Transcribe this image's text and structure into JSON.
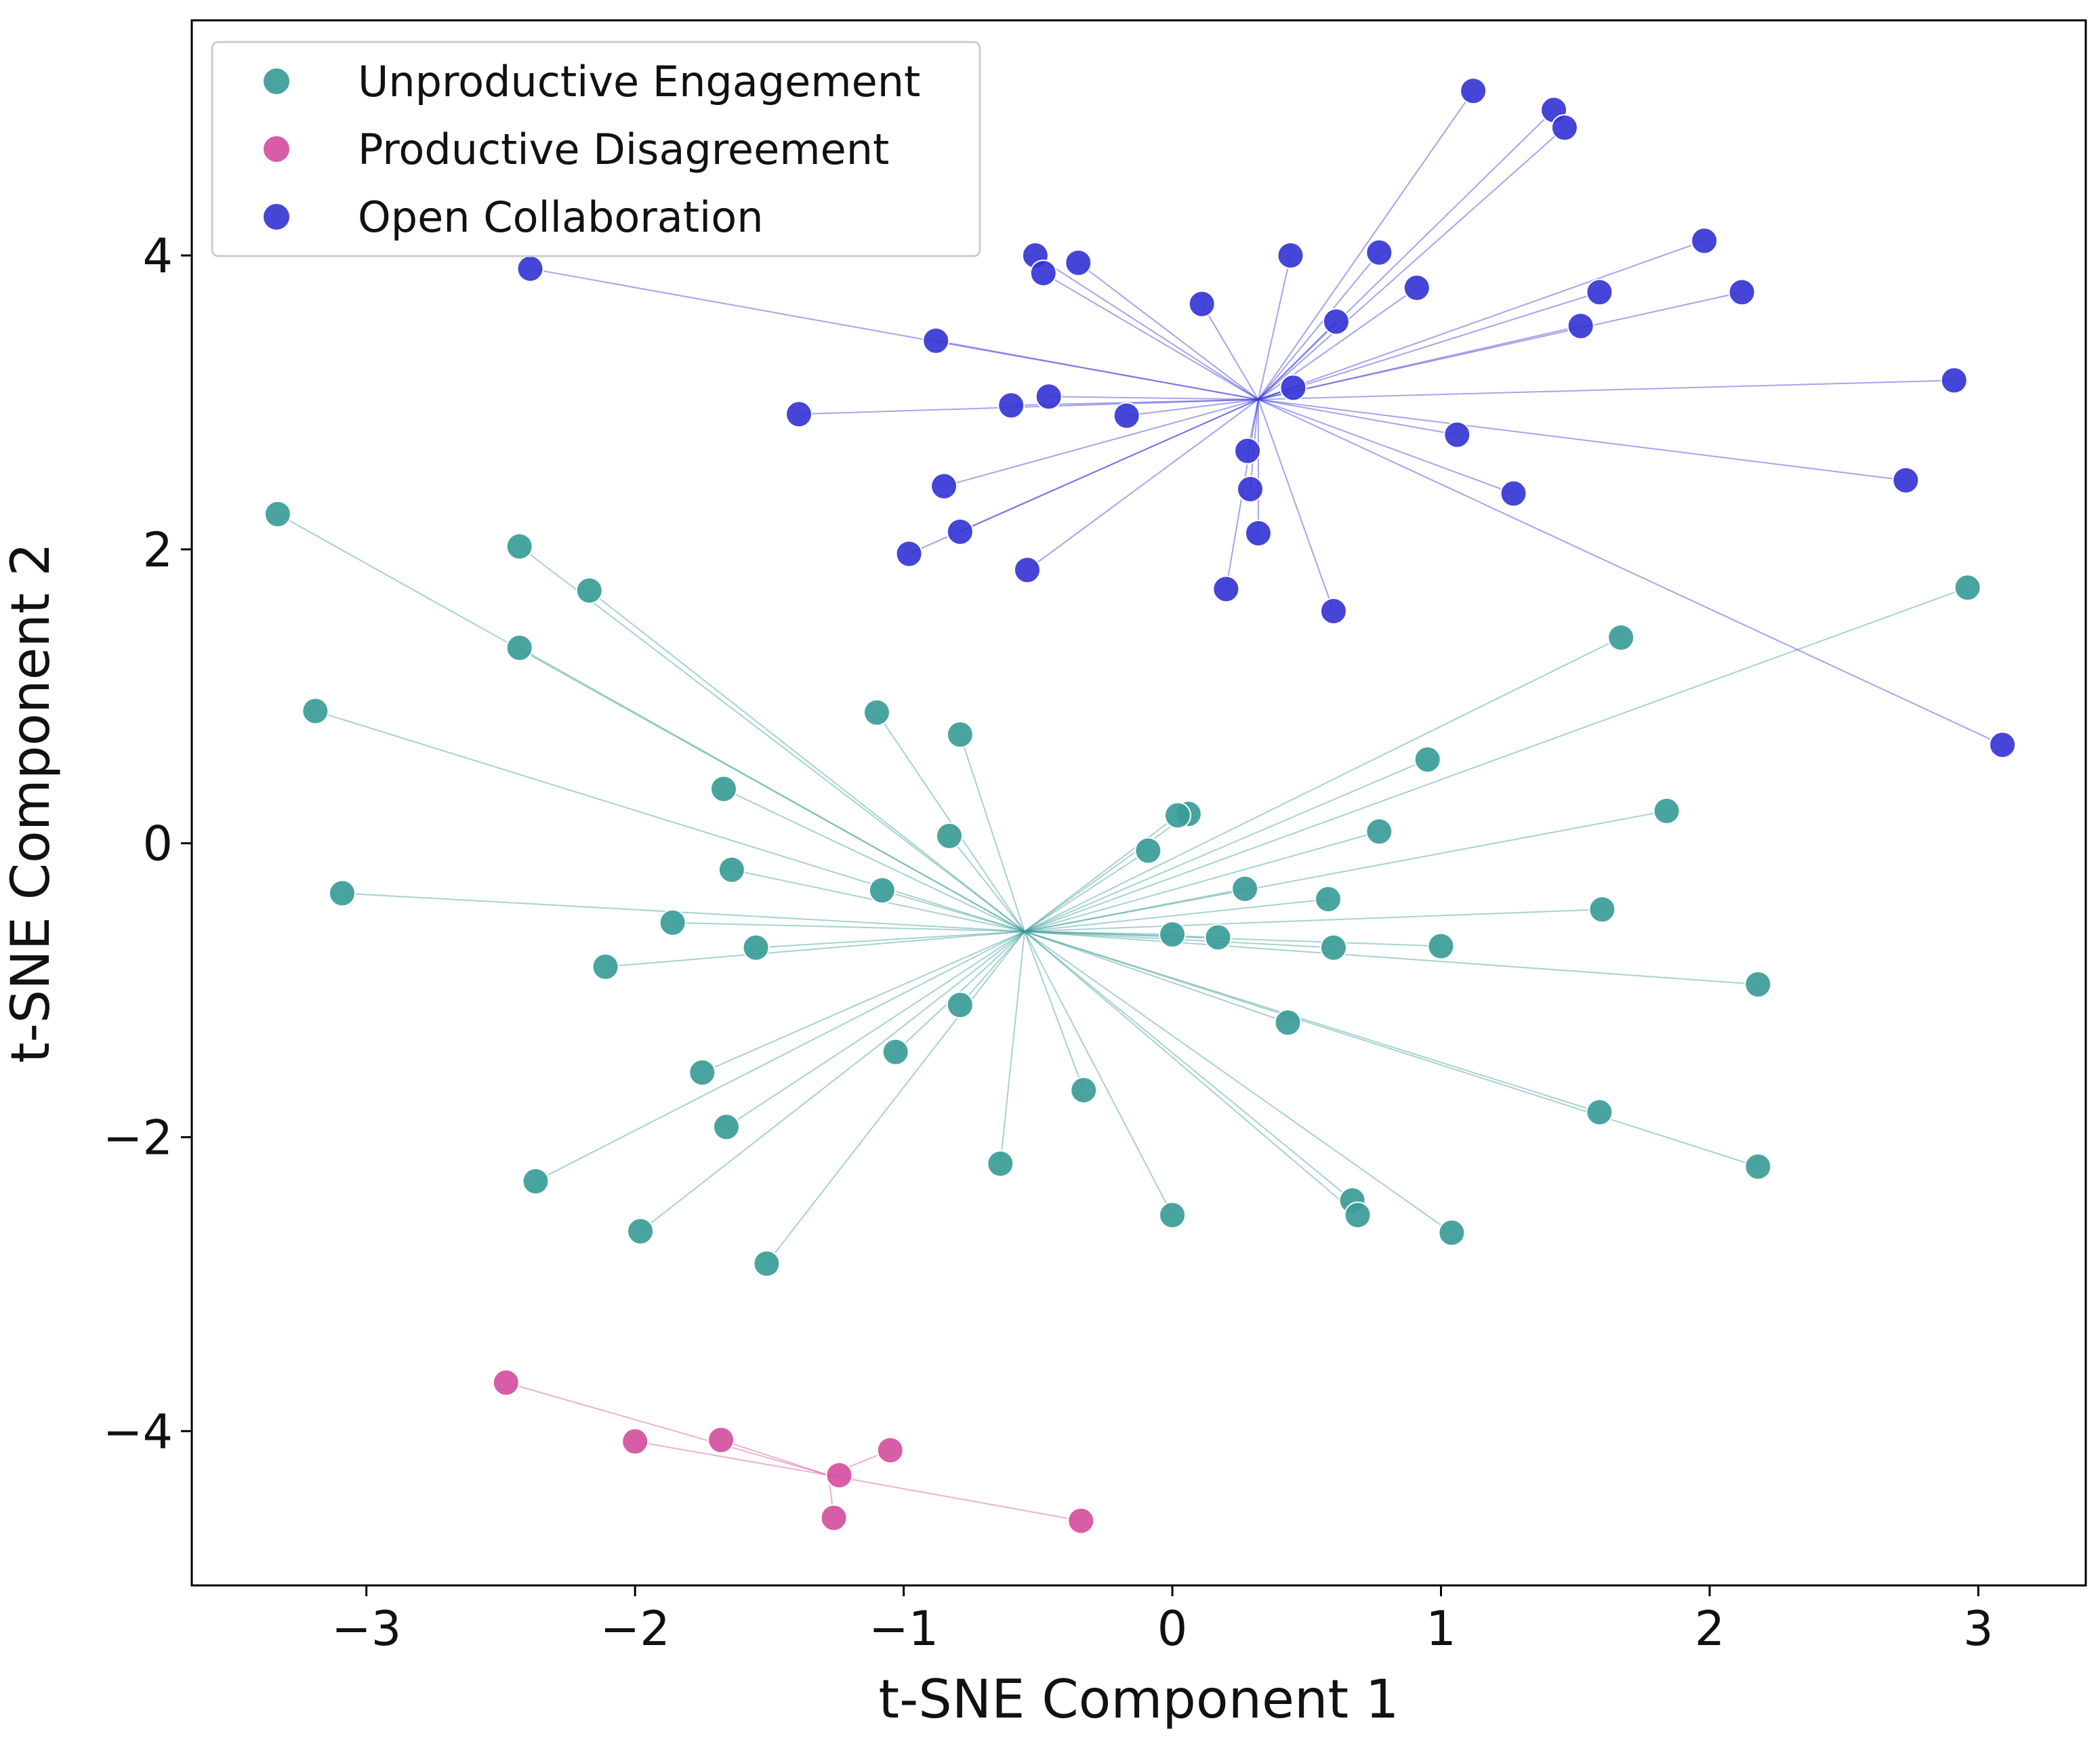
{
  "chart_data": {
    "type": "scatter",
    "xlabel": "t-SNE Component 1",
    "ylabel": "t-SNE Component 2",
    "xlim": [
      -3.65,
      3.4
    ],
    "ylim": [
      -5.05,
      5.6
    ],
    "x_ticks": [
      -3,
      -2,
      -1,
      0,
      1,
      2,
      3
    ],
    "y_ticks": [
      -4,
      -2,
      0,
      2,
      4
    ],
    "x_tick_labels": [
      "−3",
      "−2",
      "−1",
      "0",
      "1",
      "2",
      "3"
    ],
    "y_tick_labels": [
      "−4",
      "−2",
      "0",
      "2",
      "4"
    ],
    "grid": false,
    "legend_position": "top-left",
    "series": [
      {
        "name": "Unproductive Engagement",
        "color": "#3a9c98",
        "center": [
          -0.55,
          -0.6
        ],
        "points": [
          [
            -3.33,
            2.24
          ],
          [
            -2.43,
            2.02
          ],
          [
            -2.17,
            1.72
          ],
          [
            -2.43,
            1.33
          ],
          [
            -3.19,
            0.9
          ],
          [
            -1.1,
            0.89
          ],
          [
            -0.79,
            0.74
          ],
          [
            -1.67,
            0.37
          ],
          [
            -0.83,
            0.05
          ],
          [
            -1.64,
            -0.18
          ],
          [
            -1.08,
            -0.32
          ],
          [
            -3.09,
            -0.34
          ],
          [
            -1.86,
            -0.54
          ],
          [
            -1.55,
            -0.71
          ],
          [
            -2.11,
            -0.84
          ],
          [
            -0.79,
            -1.1
          ],
          [
            -1.03,
            -1.42
          ],
          [
            -1.75,
            -1.56
          ],
          [
            -1.66,
            -1.93
          ],
          [
            -2.37,
            -2.3
          ],
          [
            -0.64,
            -2.18
          ],
          [
            -0.33,
            -1.68
          ],
          [
            -1.98,
            -2.64
          ],
          [
            -1.51,
            -2.86
          ],
          [
            0.0,
            -2.53
          ],
          [
            0.06,
            0.2
          ],
          [
            0.02,
            0.19
          ],
          [
            -0.09,
            -0.05
          ],
          [
            0.0,
            -0.62
          ],
          [
            0.17,
            -0.64
          ],
          [
            0.27,
            -0.31
          ],
          [
            0.58,
            -0.38
          ],
          [
            0.6,
            -0.71
          ],
          [
            0.43,
            -1.22
          ],
          [
            0.77,
            0.08
          ],
          [
            0.95,
            0.57
          ],
          [
            1.0,
            -0.7
          ],
          [
            1.67,
            1.4
          ],
          [
            1.84,
            0.22
          ],
          [
            1.6,
            -0.45
          ],
          [
            2.18,
            -0.96
          ],
          [
            1.59,
            -1.83
          ],
          [
            2.18,
            -2.2
          ],
          [
            0.67,
            -2.43
          ],
          [
            0.69,
            -2.53
          ],
          [
            1.04,
            -2.65
          ],
          [
            2.96,
            1.74
          ]
        ]
      },
      {
        "name": "Productive Disagreement",
        "color": "#d44f9e",
        "center": [
          -1.28,
          -4.3
        ],
        "points": [
          [
            -2.48,
            -3.67
          ],
          [
            -2.0,
            -4.07
          ],
          [
            -1.68,
            -4.06
          ],
          [
            -1.05,
            -4.13
          ],
          [
            -1.24,
            -4.3
          ],
          [
            -1.26,
            -4.59
          ],
          [
            -0.34,
            -4.61
          ]
        ]
      },
      {
        "name": "Open Collaboration",
        "color": "#3535d4",
        "center": [
          0.32,
          3.02
        ],
        "points": [
          [
            -2.39,
            3.91
          ],
          [
            -0.51,
            4.0
          ],
          [
            -0.48,
            3.88
          ],
          [
            -0.35,
            3.95
          ],
          [
            -0.88,
            3.42
          ],
          [
            -0.46,
            3.04
          ],
          [
            -0.6,
            2.98
          ],
          [
            -1.39,
            2.92
          ],
          [
            -0.17,
            2.91
          ],
          [
            0.11,
            3.67
          ],
          [
            0.44,
            4.0
          ],
          [
            0.61,
            3.55
          ],
          [
            0.45,
            3.1
          ],
          [
            0.77,
            4.02
          ],
          [
            0.91,
            3.78
          ],
          [
            1.12,
            5.12
          ],
          [
            1.42,
            4.99
          ],
          [
            1.46,
            4.87
          ],
          [
            1.59,
            3.75
          ],
          [
            1.52,
            3.52
          ],
          [
            1.98,
            4.1
          ],
          [
            2.12,
            3.75
          ],
          [
            2.91,
            3.15
          ],
          [
            2.73,
            2.47
          ],
          [
            1.06,
            2.78
          ],
          [
            1.27,
            2.38
          ],
          [
            0.28,
            2.67
          ],
          [
            0.29,
            2.41
          ],
          [
            0.32,
            2.11
          ],
          [
            0.2,
            1.73
          ],
          [
            0.6,
            1.58
          ],
          [
            -0.85,
            2.43
          ],
          [
            -0.79,
            2.12
          ],
          [
            -0.98,
            1.97
          ],
          [
            -0.54,
            1.86
          ],
          [
            3.09,
            0.67
          ]
        ]
      }
    ]
  }
}
